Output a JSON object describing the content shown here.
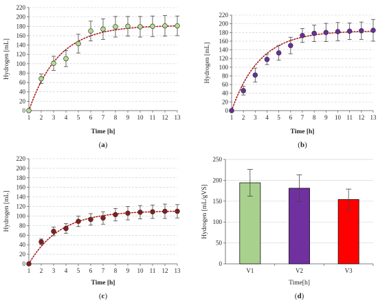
{
  "chart_data": [
    {
      "id": "a",
      "type": "scatter",
      "caption_letter": "a",
      "xlabel": "Time [h]",
      "ylabel": "Hydrogen [mL]",
      "xlim": [
        1,
        13
      ],
      "ylim": [
        0,
        220
      ],
      "x_ticks": [
        1,
        2,
        3,
        4,
        5,
        6,
        7,
        8,
        9,
        10,
        11,
        12,
        13
      ],
      "y_ticks": [
        0,
        20,
        40,
        60,
        80,
        100,
        120,
        140,
        160,
        180,
        200,
        220
      ],
      "grid": "horizontal-dashed",
      "marker_color": "#b5dc8e",
      "fit_color": "#a61c1c",
      "series": [
        {
          "x": [
            1,
            2,
            3,
            4,
            5,
            6,
            7,
            8,
            9,
            10,
            11,
            12,
            13
          ],
          "values": [
            0,
            68,
            101,
            111,
            143,
            170,
            174,
            179,
            180,
            179,
            180,
            181,
            181
          ],
          "error": [
            0,
            10,
            15,
            17,
            20,
            21,
            22,
            22,
            21,
            22,
            22,
            22,
            21
          ]
        }
      ],
      "fit": {
        "asymptote": 182,
        "rate": 0.42
      }
    },
    {
      "id": "b",
      "type": "scatter",
      "caption_letter": "b",
      "xlabel": "Time [h]",
      "ylabel": "Hydrogen [mL]",
      "xlim": [
        1,
        13
      ],
      "ylim": [
        0,
        220
      ],
      "x_ticks": [
        1,
        2,
        3,
        4,
        5,
        6,
        7,
        8,
        9,
        10,
        11,
        12,
        13
      ],
      "y_ticks": [
        0,
        20,
        40,
        60,
        80,
        100,
        120,
        140,
        160,
        180,
        200,
        220
      ],
      "grid": "horizontal-dashed",
      "marker_color": "#6a2ca0",
      "fit_color": "#a61c1c",
      "series": [
        {
          "x": [
            1,
            2,
            3,
            4,
            5,
            6,
            7,
            8,
            9,
            10,
            11,
            12,
            13
          ],
          "values": [
            0,
            46,
            82,
            118,
            133,
            150,
            173,
            178,
            180,
            182,
            183,
            184,
            185
          ],
          "error": [
            0,
            10,
            16,
            12,
            17,
            19,
            16,
            19,
            21,
            21,
            19,
            20,
            25
          ]
        }
      ],
      "fit": {
        "asymptote": 184,
        "rate": 0.42
      }
    },
    {
      "id": "c",
      "type": "scatter",
      "caption_letter": "c",
      "xlabel": "Time [h]",
      "ylabel": "Hydrogen [mL]",
      "xlim": [
        1,
        13
      ],
      "ylim": [
        0,
        220
      ],
      "x_ticks": [
        1,
        2,
        3,
        4,
        5,
        6,
        7,
        8,
        9,
        10,
        11,
        12,
        13
      ],
      "y_ticks": [
        0,
        20,
        40,
        60,
        80,
        100,
        120,
        140,
        160,
        180,
        200,
        220
      ],
      "grid": "horizontal-dashed",
      "marker_color": "#8b1a1a",
      "fit_color": "#a61c1c",
      "series": [
        {
          "x": [
            1,
            2,
            3,
            4,
            5,
            6,
            7,
            8,
            9,
            10,
            11,
            12,
            13
          ],
          "values": [
            0,
            46,
            68,
            74,
            89,
            93,
            96,
            103,
            106,
            108,
            109,
            110,
            110
          ],
          "error": [
            0,
            6,
            9,
            10,
            11,
            12,
            13,
            13,
            14,
            14,
            14,
            15,
            14
          ]
        }
      ],
      "fit": {
        "asymptote": 111,
        "rate": 0.4
      }
    },
    {
      "id": "d",
      "type": "bar",
      "caption_letter": "d",
      "xlabel": "Time[h]",
      "ylabel": "Hydrogen [mL/gVS]",
      "ylim": [
        0,
        250
      ],
      "y_ticks": [
        0,
        50,
        100,
        150,
        200,
        250
      ],
      "grid": "horizontal-solid",
      "categories": [
        "V1",
        "V2",
        "V3"
      ],
      "values": [
        194,
        181,
        154
      ],
      "error": [
        32,
        32,
        25
      ],
      "colors": [
        "#a9d18e",
        "#7030a0",
        "#ff0000"
      ]
    }
  ]
}
